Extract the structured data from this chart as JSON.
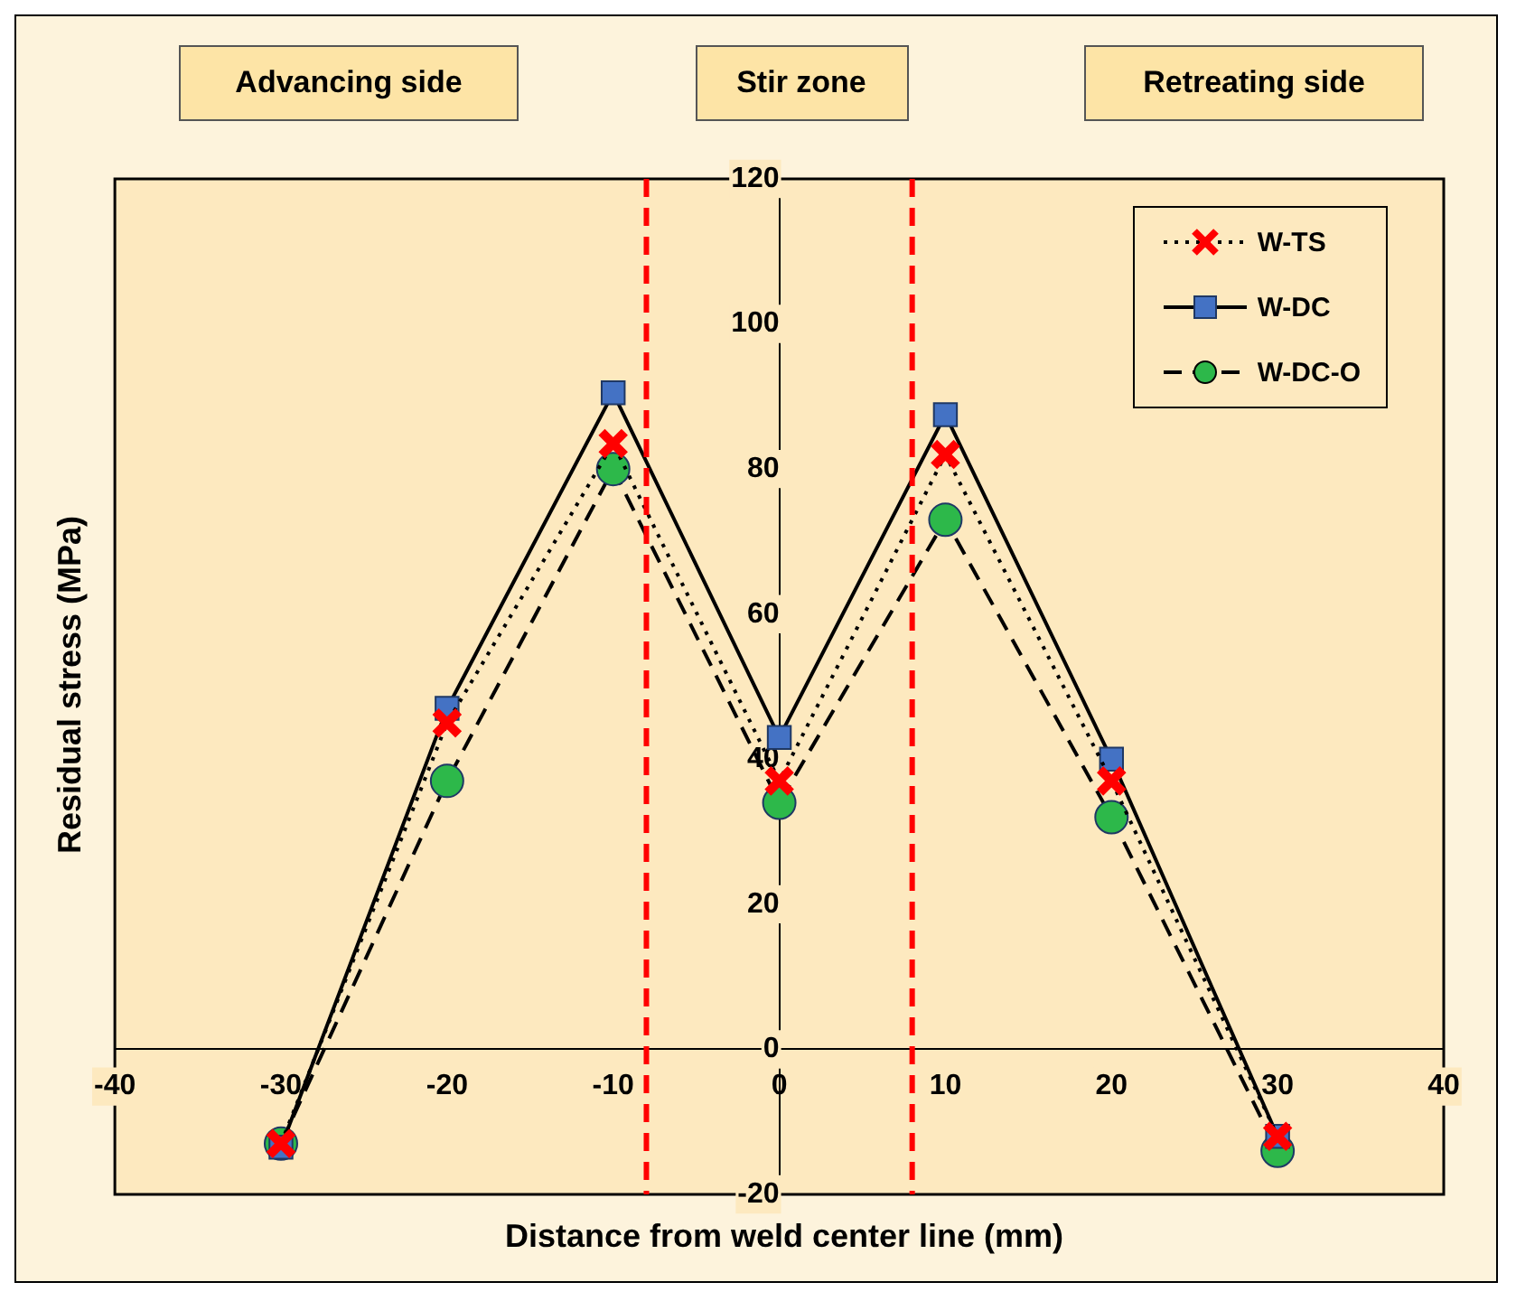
{
  "chart_data": {
    "type": "line",
    "xlabel": "Distance from weld center line (mm)",
    "ylabel": "Residual stress (MPa)",
    "annotations": [
      "Advancing side",
      "Stir zone",
      "Retreating side"
    ],
    "x": [
      -30,
      -20,
      -10,
      0,
      10,
      20,
      30
    ],
    "series": [
      {
        "name": "W-TS",
        "color": "#ff0000",
        "marker": "cross",
        "line_style": "dotted",
        "values": [
          -13,
          45,
          83.5,
          37,
          82,
          37,
          -12
        ]
      },
      {
        "name": "W-DC",
        "color": "#4472c4",
        "marker": "square",
        "line_style": "solid",
        "values": [
          -13.5,
          47,
          90.5,
          43,
          87.5,
          40,
          -12
        ]
      },
      {
        "name": "W-DC-O",
        "color": "#2db84a",
        "marker": "circle",
        "line_style": "dashed",
        "values": [
          -13,
          37,
          80,
          34,
          73,
          32,
          -14
        ]
      }
    ],
    "xlim": [
      -40,
      40
    ],
    "xticks": [
      -40,
      -30,
      -20,
      -10,
      0,
      10,
      20,
      30,
      40
    ],
    "ylim": [
      -20,
      120
    ],
    "yticks": [
      -20,
      0,
      20,
      40,
      60,
      80,
      100,
      120
    ],
    "ref_lines": [
      {
        "axis": "x",
        "value": -8,
        "color": "#ff0000",
        "line_style": "dashed"
      },
      {
        "axis": "x",
        "value": 8,
        "color": "#ff0000",
        "line_style": "dashed"
      }
    ],
    "grid": false,
    "legend": "top right"
  }
}
